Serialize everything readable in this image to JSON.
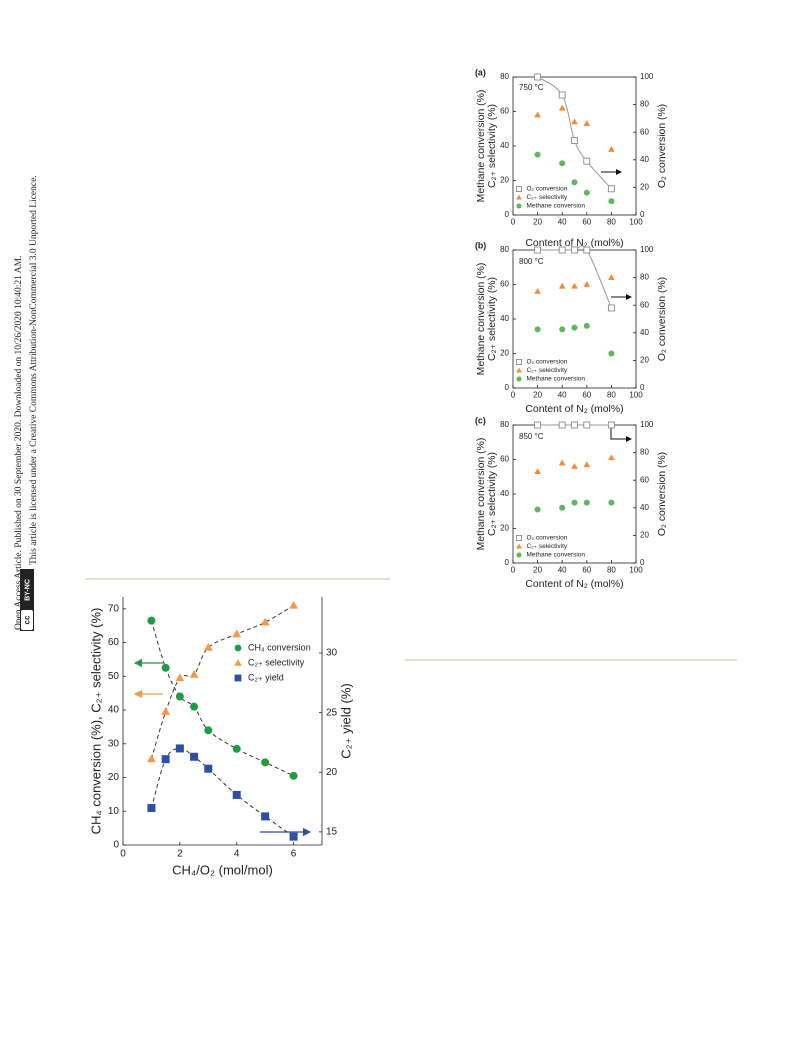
{
  "sidebar": {
    "line1": "Open Access Article. Published on 30 September 2020. Downloaded on 10/26/2020 10:40:21 AM.",
    "line2": "This article is licensed under a Creative Commons Attribution-NonCommercial 3.0 Unported Licence.",
    "badge_icon": "cc",
    "badge_text": "BY-NC"
  },
  "chart_data": [
    {
      "type": "scatter",
      "panel_label": "(a)",
      "annotation": "750 °C",
      "xlabel": "Content of N₂ (mol%)",
      "ylabel": [
        "Methane conversion (%)",
        "C₂₊ selectivity (%)"
      ],
      "y2label": "O₂ conversion (%)",
      "xlim": [
        0,
        100
      ],
      "xticks": [
        0,
        20,
        40,
        60,
        80,
        100
      ],
      "ylim": [
        0,
        80
      ],
      "yticks": [
        0,
        20,
        40,
        60,
        80
      ],
      "y2lim": [
        0,
        100
      ],
      "y2ticks": [
        0,
        20,
        40,
        60,
        80,
        100
      ],
      "legend": "lower left",
      "x": [
        20,
        40,
        50,
        60,
        80
      ],
      "series": [
        {
          "name": "O₂ conversion",
          "color": "#8c8c8c",
          "marker": "square-open",
          "line": "solid",
          "axis": "y2",
          "values": [
            100,
            87,
            54,
            39,
            19
          ]
        },
        {
          "name": "C₂₊ selectivity",
          "color": "#f28a3a",
          "marker": "triangle",
          "values": [
            58,
            62,
            54,
            53,
            38
          ]
        },
        {
          "name": "Methane conversion",
          "color": "#5cb85c",
          "marker": "circle",
          "values": [
            35,
            30,
            19,
            13,
            8
          ]
        }
      ]
    },
    {
      "type": "scatter",
      "panel_label": "(b)",
      "annotation": "800 °C",
      "xlabel": "Content of N₂ (mol%)",
      "ylabel": [
        "Methane conversion (%)",
        "C₂₊ selectivity (%)"
      ],
      "y2label": "O₂ conversion (%)",
      "xlim": [
        0,
        100
      ],
      "xticks": [
        0,
        20,
        40,
        60,
        80,
        100
      ],
      "ylim": [
        0,
        80
      ],
      "yticks": [
        0,
        20,
        40,
        60,
        80
      ],
      "y2lim": [
        0,
        100
      ],
      "y2ticks": [
        0,
        20,
        40,
        60,
        80,
        100
      ],
      "legend": "lower left",
      "x": [
        20,
        40,
        50,
        60,
        80
      ],
      "series": [
        {
          "name": "O₂ conversion",
          "color": "#8c8c8c",
          "marker": "square-open",
          "line": "solid",
          "axis": "y2",
          "values": [
            100,
            100,
            100,
            100,
            58
          ]
        },
        {
          "name": "C₂₊ selectivity",
          "color": "#f28a3a",
          "marker": "triangle",
          "values": [
            56,
            59,
            59,
            60,
            64
          ]
        },
        {
          "name": "Methane conversion",
          "color": "#5cb85c",
          "marker": "circle",
          "values": [
            34,
            34,
            35,
            36,
            20
          ]
        }
      ]
    },
    {
      "type": "scatter",
      "panel_label": "(c)",
      "annotation": "850 °C",
      "xlabel": "Content of N₂ (mol%)",
      "ylabel": [
        "Methane conversion (%)",
        "C₂₊ selectivity (%)"
      ],
      "y2label": "O₂ conversion (%)",
      "xlim": [
        0,
        100
      ],
      "xticks": [
        0,
        20,
        40,
        60,
        80,
        100
      ],
      "ylim": [
        0,
        80
      ],
      "yticks": [
        0,
        20,
        40,
        60,
        80
      ],
      "y2lim": [
        0,
        100
      ],
      "y2ticks": [
        0,
        20,
        40,
        60,
        80,
        100
      ],
      "legend": "lower left",
      "x": [
        20,
        40,
        50,
        60,
        80
      ],
      "series": [
        {
          "name": "O₂ conversion",
          "color": "#8c8c8c",
          "marker": "square-open",
          "line": "solid",
          "axis": "y2",
          "values": [
            100,
            100,
            100,
            100,
            100
          ]
        },
        {
          "name": "C₂₊ selectivity",
          "color": "#f28a3a",
          "marker": "triangle",
          "values": [
            53,
            58,
            56,
            57,
            61
          ]
        },
        {
          "name": "Methane conversion",
          "color": "#5cb85c",
          "marker": "circle",
          "values": [
            31,
            32,
            35,
            35,
            35
          ]
        }
      ]
    },
    {
      "type": "scatter",
      "xlabel": "CH₄/O₂ (mol/mol)",
      "ylabel": [
        "CH₄ conversion (%), C₂₊ selectivity (%)"
      ],
      "y2label": "C₂₊ yield (%)",
      "xlim": [
        0,
        7
      ],
      "xticks": [
        0,
        2,
        4,
        6
      ],
      "ylim": [
        0,
        73.5
      ],
      "yticks": [
        0,
        10,
        20,
        30,
        40,
        50,
        60,
        70
      ],
      "y2lim": [
        13.9,
        34.7
      ],
      "y2ticks": [
        15,
        20,
        25,
        30
      ],
      "legend": "upper right",
      "x": [
        1,
        1.5,
        2,
        2.5,
        3,
        4,
        5,
        6
      ],
      "series": [
        {
          "name": "CH₄ conversion",
          "color": "#1f9a45",
          "marker": "circle",
          "line": "dashed",
          "values": [
            66.5,
            52.5,
            44,
            41,
            34,
            28.5,
            24.5,
            20.5
          ]
        },
        {
          "name": "C₂₊ selectivity",
          "color": "#f39a4a",
          "marker": "triangle",
          "line": "dashed",
          "values": [
            25.5,
            39.5,
            49.5,
            50.5,
            58.5,
            62.5,
            66,
            71
          ]
        },
        {
          "name": "C₂₊ yield",
          "color": "#2e4fa6",
          "marker": "square",
          "line": "dashed",
          "axis": "y2",
          "values": [
            17.0,
            21.1,
            22.0,
            21.3,
            20.3,
            18.1,
            16.3,
            14.6
          ]
        }
      ]
    }
  ]
}
